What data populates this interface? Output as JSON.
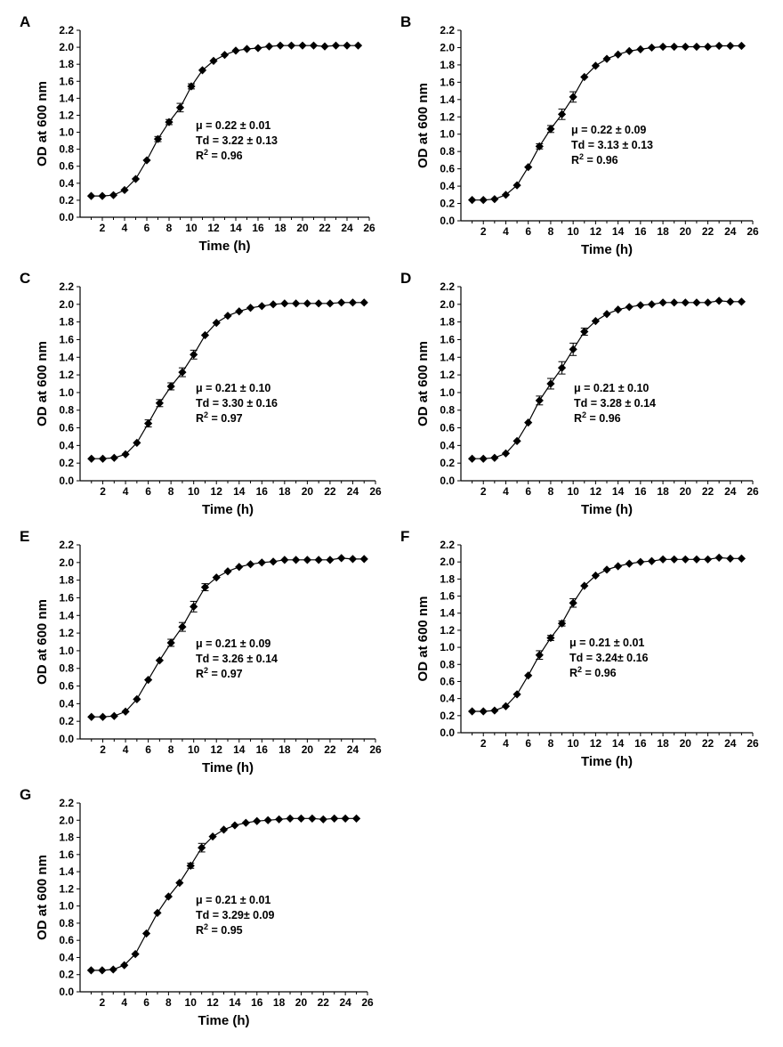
{
  "figure": {
    "panel_letters": [
      "A",
      "B",
      "C",
      "D",
      "E",
      "F",
      "G"
    ]
  },
  "chart_data": [
    {
      "type": "line",
      "panel": "A",
      "xlabel": "Time (h)",
      "ylabel": "OD at 600 nm",
      "xlim": [
        0,
        26
      ],
      "ylim": [
        0,
        2.2
      ],
      "xticks": [
        2,
        4,
        6,
        8,
        10,
        12,
        14,
        16,
        18,
        20,
        22,
        24,
        26
      ],
      "yticks": [
        0.0,
        0.2,
        0.4,
        0.6,
        0.8,
        1.0,
        1.2,
        1.4,
        1.6,
        1.8,
        2.0,
        2.2
      ],
      "grid": false,
      "marker": "diamond",
      "series": [
        {
          "x": [
            1,
            2,
            3,
            4,
            5,
            6,
            7,
            8,
            9,
            10,
            11,
            12,
            13,
            14,
            15,
            16,
            17,
            18,
            19,
            20,
            21,
            22,
            23,
            24,
            25
          ],
          "values": [
            0.25,
            0.25,
            0.26,
            0.32,
            0.45,
            0.67,
            0.92,
            1.12,
            1.29,
            1.54,
            1.73,
            1.84,
            1.91,
            1.96,
            1.98,
            1.99,
            2.01,
            2.02,
            2.02,
            2.02,
            2.02,
            2.01,
            2.02,
            2.02,
            2.02
          ],
          "errors": [
            0.01,
            0.01,
            0.01,
            0.01,
            0.01,
            0.02,
            0.03,
            0.03,
            0.05,
            0.03,
            0.02,
            0.02,
            0.01,
            0.01,
            0.01,
            0.01,
            0.01,
            0.01,
            0.01,
            0.01,
            0.01,
            0.01,
            0.01,
            0.01,
            0.01
          ]
        }
      ],
      "annotations": [
        "μ = 0.22 ± 0.01",
        "Td = 3.22 ± 0.13",
        "R² = 0.96"
      ]
    },
    {
      "type": "line",
      "panel": "B",
      "xlabel": "Time (h)",
      "ylabel": "OD at 600 nm",
      "xlim": [
        0,
        26
      ],
      "ylim": [
        0,
        2.2
      ],
      "xticks": [
        2,
        4,
        6,
        8,
        10,
        12,
        14,
        16,
        18,
        20,
        22,
        24,
        26
      ],
      "yticks": [
        0.0,
        0.2,
        0.4,
        0.6,
        0.8,
        1.0,
        1.2,
        1.4,
        1.6,
        1.8,
        2.0,
        2.2
      ],
      "grid": false,
      "marker": "diamond",
      "series": [
        {
          "x": [
            1,
            2,
            3,
            4,
            5,
            6,
            7,
            8,
            9,
            10,
            11,
            12,
            13,
            14,
            15,
            16,
            17,
            18,
            19,
            20,
            21,
            22,
            23,
            24,
            25
          ],
          "values": [
            0.24,
            0.24,
            0.25,
            0.3,
            0.41,
            0.62,
            0.86,
            1.06,
            1.23,
            1.43,
            1.66,
            1.79,
            1.87,
            1.92,
            1.96,
            1.98,
            2.0,
            2.01,
            2.01,
            2.01,
            2.01,
            2.01,
            2.02,
            2.02,
            2.02
          ],
          "errors": [
            0.01,
            0.01,
            0.01,
            0.01,
            0.01,
            0.02,
            0.03,
            0.04,
            0.06,
            0.06,
            0.02,
            0.02,
            0.01,
            0.01,
            0.01,
            0.01,
            0.01,
            0.01,
            0.01,
            0.01,
            0.01,
            0.01,
            0.01,
            0.01,
            0.01
          ]
        }
      ],
      "annotations": [
        "μ = 0.22 ± 0.09",
        "Td = 3.13 ± 0.13",
        "R² = 0.96"
      ]
    },
    {
      "type": "line",
      "panel": "C",
      "xlabel": "Time (h)",
      "ylabel": "OD at 600 nm",
      "xlim": [
        0,
        26
      ],
      "ylim": [
        0,
        2.2
      ],
      "xticks": [
        2,
        4,
        6,
        8,
        10,
        12,
        14,
        16,
        18,
        20,
        22,
        24,
        26
      ],
      "yticks": [
        0.0,
        0.2,
        0.4,
        0.6,
        0.8,
        1.0,
        1.2,
        1.4,
        1.6,
        1.8,
        2.0,
        2.2
      ],
      "grid": false,
      "marker": "diamond",
      "series": [
        {
          "x": [
            1,
            2,
            3,
            4,
            5,
            6,
            7,
            8,
            9,
            10,
            11,
            12,
            13,
            14,
            15,
            16,
            17,
            18,
            19,
            20,
            21,
            22,
            23,
            24,
            25
          ],
          "values": [
            0.25,
            0.25,
            0.26,
            0.3,
            0.43,
            0.65,
            0.88,
            1.07,
            1.23,
            1.43,
            1.65,
            1.79,
            1.87,
            1.92,
            1.96,
            1.98,
            2.0,
            2.01,
            2.01,
            2.01,
            2.01,
            2.01,
            2.02,
            2.02,
            2.02
          ],
          "errors": [
            0.01,
            0.01,
            0.01,
            0.01,
            0.01,
            0.04,
            0.04,
            0.04,
            0.05,
            0.05,
            0.02,
            0.02,
            0.01,
            0.01,
            0.01,
            0.01,
            0.01,
            0.01,
            0.01,
            0.01,
            0.01,
            0.01,
            0.01,
            0.01,
            0.01
          ]
        }
      ],
      "annotations": [
        "μ = 0.21 ± 0.10",
        "Td = 3.30 ± 0.16",
        "R² = 0.97"
      ]
    },
    {
      "type": "line",
      "panel": "D",
      "xlabel": "Time (h)",
      "ylabel": "OD at 600 nm",
      "xlim": [
        0,
        26
      ],
      "ylim": [
        0,
        2.2
      ],
      "xticks": [
        2,
        4,
        6,
        8,
        10,
        12,
        14,
        16,
        18,
        20,
        22,
        24,
        26
      ],
      "yticks": [
        0.0,
        0.2,
        0.4,
        0.6,
        0.8,
        1.0,
        1.2,
        1.4,
        1.6,
        1.8,
        2.0,
        2.2
      ],
      "grid": false,
      "marker": "diamond",
      "series": [
        {
          "x": [
            1,
            2,
            3,
            4,
            5,
            6,
            7,
            8,
            9,
            10,
            11,
            12,
            13,
            14,
            15,
            16,
            17,
            18,
            19,
            20,
            21,
            22,
            23,
            24,
            25
          ],
          "values": [
            0.25,
            0.25,
            0.26,
            0.31,
            0.45,
            0.66,
            0.91,
            1.1,
            1.28,
            1.49,
            1.69,
            1.81,
            1.89,
            1.94,
            1.97,
            1.99,
            2.0,
            2.02,
            2.02,
            2.02,
            2.02,
            2.02,
            2.04,
            2.03,
            2.03
          ],
          "errors": [
            0.01,
            0.01,
            0.01,
            0.01,
            0.01,
            0.02,
            0.05,
            0.06,
            0.07,
            0.07,
            0.04,
            0.02,
            0.01,
            0.01,
            0.01,
            0.01,
            0.01,
            0.01,
            0.01,
            0.01,
            0.01,
            0.01,
            0.01,
            0.01,
            0.01
          ]
        }
      ],
      "annotations": [
        "μ = 0.21 ± 0.10",
        "Td = 3.28 ± 0.14",
        "R² = 0.96"
      ]
    },
    {
      "type": "line",
      "panel": "E",
      "xlabel": "Time (h)",
      "ylabel": "OD at 600 nm",
      "xlim": [
        0,
        26
      ],
      "ylim": [
        0,
        2.2
      ],
      "xticks": [
        2,
        4,
        6,
        8,
        10,
        12,
        14,
        16,
        18,
        20,
        22,
        24,
        26
      ],
      "yticks": [
        0.0,
        0.2,
        0.4,
        0.6,
        0.8,
        1.0,
        1.2,
        1.4,
        1.6,
        1.8,
        2.0,
        2.2
      ],
      "grid": false,
      "marker": "diamond",
      "series": [
        {
          "x": [
            1,
            2,
            3,
            4,
            5,
            6,
            7,
            8,
            9,
            10,
            11,
            12,
            13,
            14,
            15,
            16,
            17,
            18,
            19,
            20,
            21,
            22,
            23,
            24,
            25
          ],
          "values": [
            0.25,
            0.25,
            0.26,
            0.31,
            0.45,
            0.67,
            0.89,
            1.09,
            1.27,
            1.5,
            1.72,
            1.83,
            1.9,
            1.95,
            1.98,
            2.0,
            2.01,
            2.03,
            2.03,
            2.03,
            2.03,
            2.03,
            2.05,
            2.04,
            2.04
          ],
          "errors": [
            0.01,
            0.01,
            0.01,
            0.01,
            0.01,
            0.02,
            0.02,
            0.04,
            0.05,
            0.06,
            0.04,
            0.02,
            0.01,
            0.01,
            0.01,
            0.01,
            0.01,
            0.01,
            0.01,
            0.01,
            0.01,
            0.01,
            0.01,
            0.01,
            0.01
          ]
        }
      ],
      "annotations": [
        "μ = 0.21 ± 0.09",
        "Td = 3.26 ± 0.14",
        "R² = 0.97"
      ]
    },
    {
      "type": "line",
      "panel": "F",
      "xlabel": "Time (h)",
      "ylabel": "OD at 600 nm",
      "xlim": [
        0,
        26
      ],
      "ylim": [
        0,
        2.2
      ],
      "xticks": [
        2,
        4,
        6,
        8,
        10,
        12,
        14,
        16,
        18,
        20,
        22,
        24,
        26
      ],
      "yticks": [
        0.0,
        0.2,
        0.4,
        0.6,
        0.8,
        1.0,
        1.2,
        1.4,
        1.6,
        1.8,
        2.0,
        2.2
      ],
      "grid": false,
      "marker": "diamond",
      "series": [
        {
          "x": [
            1,
            2,
            3,
            4,
            5,
            6,
            7,
            8,
            9,
            10,
            11,
            12,
            13,
            14,
            15,
            16,
            17,
            18,
            19,
            20,
            21,
            22,
            23,
            24,
            25
          ],
          "values": [
            0.25,
            0.25,
            0.26,
            0.31,
            0.45,
            0.67,
            0.91,
            1.11,
            1.28,
            1.52,
            1.72,
            1.84,
            1.91,
            1.95,
            1.98,
            2.0,
            2.01,
            2.03,
            2.03,
            2.03,
            2.03,
            2.03,
            2.05,
            2.04,
            2.04
          ],
          "errors": [
            0.01,
            0.01,
            0.01,
            0.01,
            0.01,
            0.02,
            0.05,
            0.03,
            0.03,
            0.05,
            0.02,
            0.02,
            0.01,
            0.01,
            0.01,
            0.01,
            0.01,
            0.01,
            0.01,
            0.01,
            0.01,
            0.01,
            0.01,
            0.01,
            0.01
          ]
        }
      ],
      "annotations": [
        "μ = 0.21 ± 0.01",
        "Td = 3.24± 0.16",
        "R² = 0.96"
      ]
    },
    {
      "type": "line",
      "panel": "G",
      "xlabel": "Time (h)",
      "ylabel": "OD at 600 nm",
      "xlim": [
        0,
        26
      ],
      "ylim": [
        0,
        2.2
      ],
      "xticks": [
        2,
        4,
        6,
        8,
        10,
        12,
        14,
        16,
        18,
        20,
        22,
        24,
        26
      ],
      "yticks": [
        0.0,
        0.2,
        0.4,
        0.6,
        0.8,
        1.0,
        1.2,
        1.4,
        1.6,
        1.8,
        2.0,
        2.2
      ],
      "grid": false,
      "marker": "diamond",
      "series": [
        {
          "x": [
            1,
            2,
            3,
            4,
            5,
            6,
            7,
            8,
            9,
            10,
            11,
            12,
            13,
            14,
            15,
            16,
            17,
            18,
            19,
            20,
            21,
            22,
            23,
            24,
            25
          ],
          "values": [
            0.25,
            0.25,
            0.26,
            0.31,
            0.44,
            0.68,
            0.92,
            1.11,
            1.27,
            1.47,
            1.68,
            1.81,
            1.89,
            1.94,
            1.97,
            1.99,
            2.0,
            2.01,
            2.02,
            2.02,
            2.02,
            2.01,
            2.02,
            2.02,
            2.02
          ],
          "errors": [
            0.01,
            0.01,
            0.01,
            0.01,
            0.01,
            0.02,
            0.02,
            0.02,
            0.02,
            0.03,
            0.05,
            0.02,
            0.01,
            0.01,
            0.01,
            0.01,
            0.01,
            0.01,
            0.01,
            0.01,
            0.01,
            0.01,
            0.01,
            0.01,
            0.01
          ]
        }
      ],
      "annotations": [
        "μ = 0.21 ± 0.01",
        "Td = 3.29± 0.09",
        "R² = 0.95"
      ]
    }
  ]
}
